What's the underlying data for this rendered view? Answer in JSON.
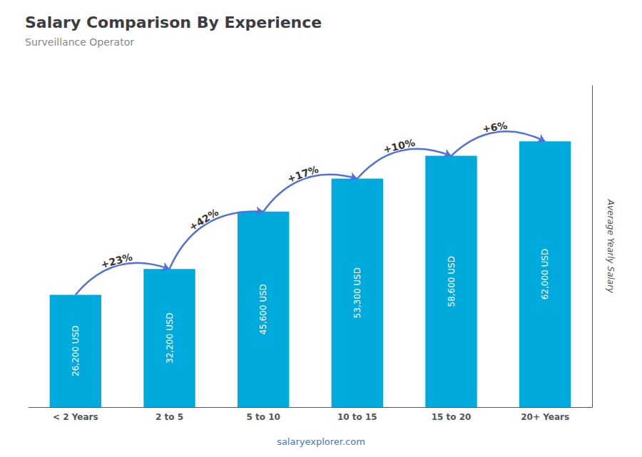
{
  "chart_data": {
    "type": "bar",
    "title": "Salary Comparison By Experience",
    "subtitle": "Surveillance Operator",
    "ylabel": "Average Yearly Salary",
    "categories": [
      "< 2 Years",
      "2 to 5",
      "5 to 10",
      "10 to 15",
      "15 to 20",
      "20+ Years"
    ],
    "values": [
      26200,
      32200,
      45600,
      53300,
      58600,
      62000
    ],
    "value_labels": [
      "26,200 USD",
      "32,200 USD",
      "45,600 USD",
      "53,300 USD",
      "58,600 USD",
      "62,000 USD"
    ],
    "data_labels": true,
    "color": "#00aadd",
    "ylim": [
      0,
      75000
    ],
    "grid": false,
    "tick_labels": "x",
    "annotations": [
      "+23%",
      "+42%",
      "+17%",
      "+10%",
      "+6%"
    ],
    "footer": "salaryexplorer.com"
  }
}
